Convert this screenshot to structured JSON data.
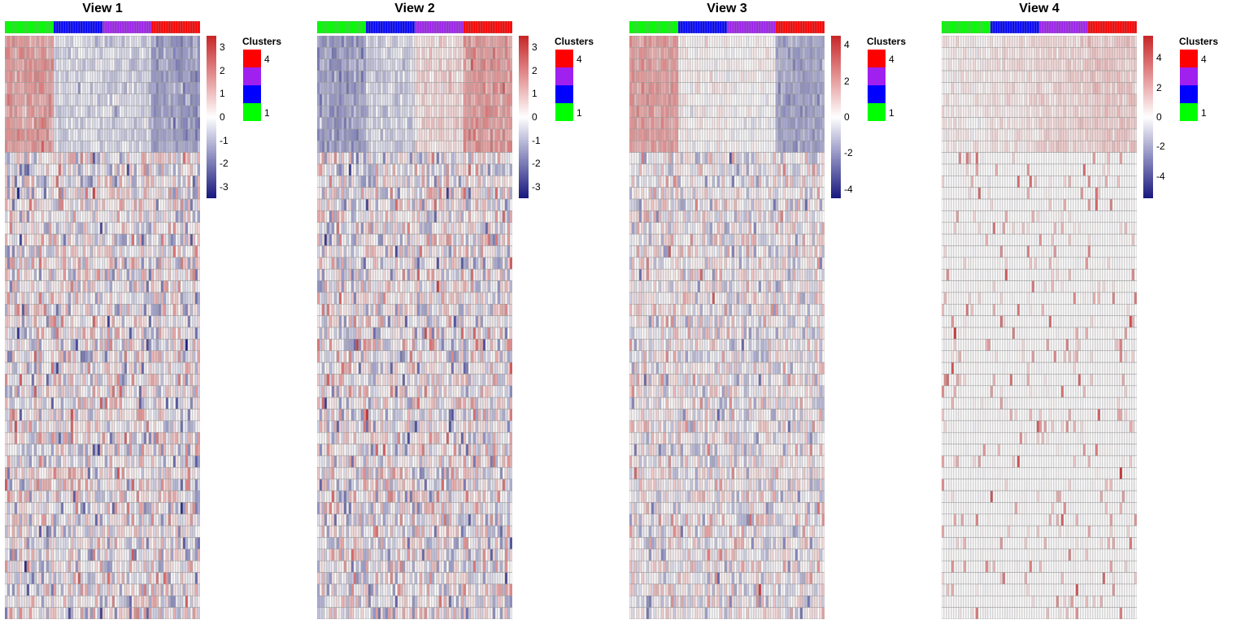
{
  "legend": {
    "title": "Clusters",
    "entries": [
      {
        "color": "#ff0000",
        "label": "4"
      },
      {
        "color": "#a020f0",
        "label": ""
      },
      {
        "color": "#0000ff",
        "label": ""
      },
      {
        "color": "#00ff00",
        "label": "1"
      }
    ]
  },
  "colors": {
    "low": "#1a1a80",
    "mid": "#ffffff",
    "high": "#c8282a",
    "cell_border": "#9a9a9a"
  },
  "chart_data": [
    {
      "type": "heatmap",
      "title": "View 1",
      "n_columns": 80,
      "n_rows": 50,
      "n_signal_rows": 10,
      "cluster_order": [
        1,
        2,
        3,
        4
      ],
      "columns_per_cluster": 20,
      "cluster_colors": {
        "1": "#00ff00",
        "2": "#0000ff",
        "3": "#a020f0",
        "4": "#ff0000"
      },
      "signal_means": [
        1.6,
        -0.5,
        -0.6,
        -1.5
      ],
      "noise_sd": 1.0,
      "color_range": [
        -3.5,
        3.5
      ],
      "colorbar_ticks": [
        3,
        2,
        1,
        0,
        -1,
        -2,
        -3
      ]
    },
    {
      "type": "heatmap",
      "title": "View 2",
      "n_columns": 80,
      "n_rows": 50,
      "n_signal_rows": 10,
      "cluster_order": [
        1,
        2,
        3,
        4
      ],
      "columns_per_cluster": 20,
      "cluster_colors": {
        "1": "#00ff00",
        "2": "#0000ff",
        "3": "#a020f0",
        "4": "#ff0000"
      },
      "signal_means": [
        -1.5,
        -0.6,
        0.5,
        1.6
      ],
      "noise_sd": 1.0,
      "color_range": [
        -3.5,
        3.5
      ],
      "colorbar_ticks": [
        3,
        2,
        1,
        0,
        -1,
        -2,
        -3
      ]
    },
    {
      "type": "heatmap",
      "title": "View 3",
      "n_columns": 80,
      "n_rows": 50,
      "n_signal_rows": 10,
      "cluster_order": [
        1,
        2,
        3,
        4
      ],
      "columns_per_cluster": 20,
      "cluster_colors": {
        "1": "#00ff00",
        "2": "#0000ff",
        "3": "#a020f0",
        "4": "#ff0000"
      },
      "signal_means": [
        2.0,
        0.2,
        0.0,
        -1.8
      ],
      "noise_sd": 1.0,
      "color_range": [
        -4.5,
        4.5
      ],
      "colorbar_ticks": [
        4,
        2,
        0,
        -2,
        -4
      ]
    },
    {
      "type": "heatmap",
      "title": "View 4",
      "n_columns": 80,
      "n_rows": 50,
      "n_signal_rows": 10,
      "cluster_order": [
        1,
        2,
        3,
        4
      ],
      "columns_per_cluster": 20,
      "cluster_colors": {
        "1": "#00ff00",
        "2": "#0000ff",
        "3": "#a020f0",
        "4": "#ff0000"
      },
      "signal_means": [
        0.3,
        0.6,
        0.9,
        1.2
      ],
      "noise_sd": 0.9,
      "noise_positive_only": true,
      "color_range": [
        -5.5,
        5.5
      ],
      "colorbar_ticks": [
        4,
        2,
        0,
        -2,
        -4
      ]
    }
  ]
}
